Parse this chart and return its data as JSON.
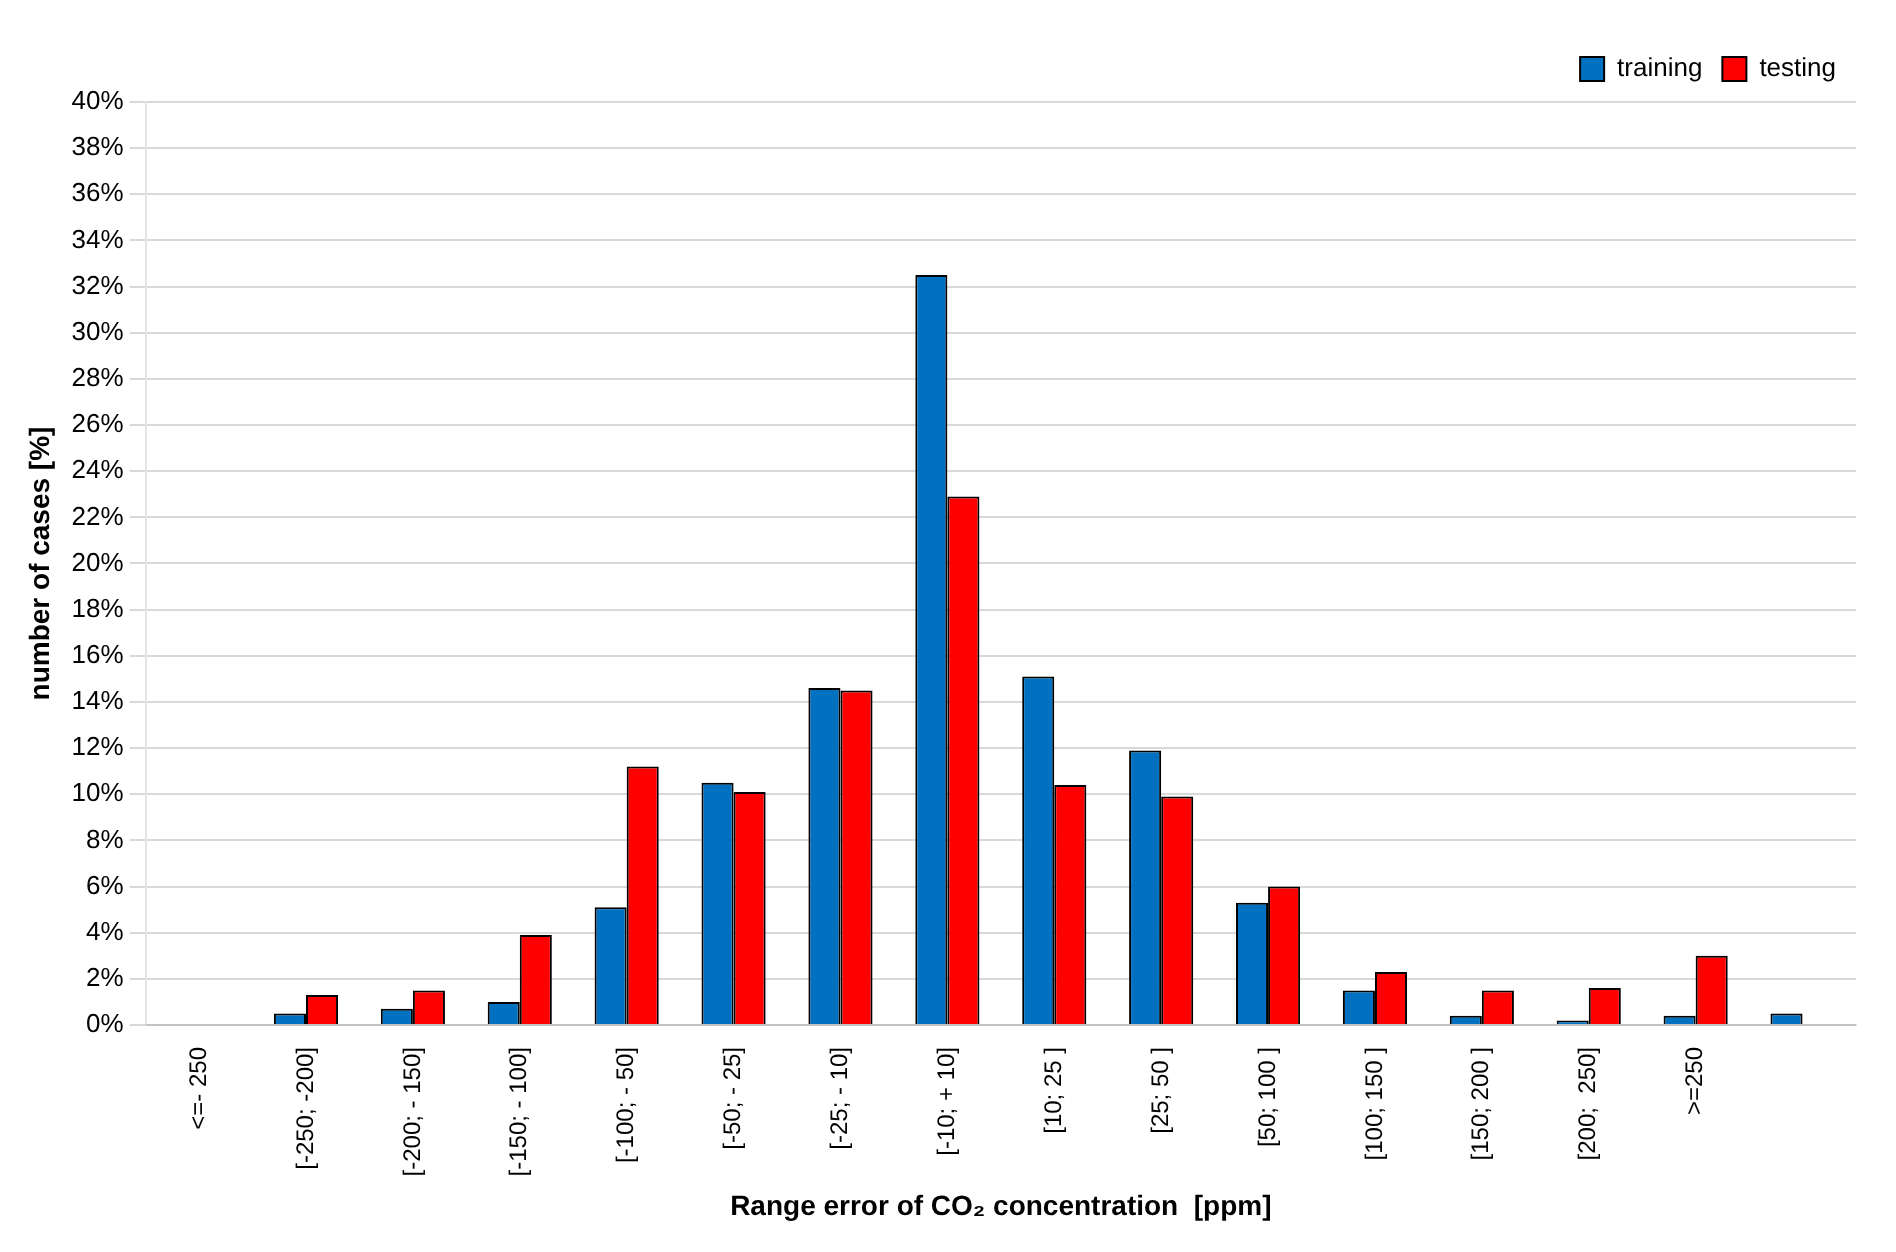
{
  "chart_data": {
    "type": "bar",
    "xlabel": "Range error of CO₂ concentration  [ppm]",
    "ylabel": "number of cases [%]",
    "categories": [
      "<=- 250",
      "[-250; -200]",
      "[-200; - 150]",
      "[-150; - 100]",
      "[-100; - 50]",
      "[-50; - 25]",
      "[-25; - 10]",
      "[-10; + 10]",
      "[10; 25 ]",
      "[25; 50 ]",
      "[50; 100 ]",
      "[100; 150 ]",
      "[150; 200 ]",
      "[200;  250]",
      ">=250",
      null
    ],
    "series": [
      {
        "name": "training",
        "color": "#0070c0",
        "values": [
          0,
          0.5,
          0.7,
          1.0,
          5.1,
          10.5,
          14.6,
          32.5,
          15.1,
          11.9,
          5.3,
          1.5,
          0.4,
          0.2,
          0.4,
          0.5
        ]
      },
      {
        "name": "testing",
        "color": "#ff0000",
        "values": [
          0,
          1.3,
          1.5,
          3.9,
          11.2,
          10.1,
          14.5,
          22.9,
          10.4,
          9.9,
          6.0,
          2.3,
          1.5,
          1.6,
          3.0,
          0
        ]
      }
    ],
    "ylim": [
      0,
      40
    ],
    "yticks": [
      {
        "value": 0,
        "label": "0%"
      },
      {
        "value": 2,
        "label": "2%"
      },
      {
        "value": 4,
        "label": "4%"
      },
      {
        "value": 6,
        "label": "6%"
      },
      {
        "value": 8,
        "label": "8%"
      },
      {
        "value": 10,
        "label": "10%"
      },
      {
        "value": 12,
        "label": "12%"
      },
      {
        "value": 14,
        "label": "14%"
      },
      {
        "value": 16,
        "label": "16%"
      },
      {
        "value": 18,
        "label": "18%"
      },
      {
        "value": 20,
        "label": "20%"
      },
      {
        "value": 22,
        "label": "22%"
      },
      {
        "value": 24,
        "label": "24%"
      },
      {
        "value": 26,
        "label": "26%"
      },
      {
        "value": 28,
        "label": "28%"
      },
      {
        "value": 30,
        "label": "30%"
      },
      {
        "value": 32,
        "label": "32%"
      },
      {
        "value": 34,
        "label": "34%"
      },
      {
        "value": 36,
        "label": "36%"
      },
      {
        "value": 38,
        "label": "38%"
      },
      {
        "value": 40,
        "label": "40%"
      }
    ],
    "grid": "y",
    "legend": "top right"
  }
}
